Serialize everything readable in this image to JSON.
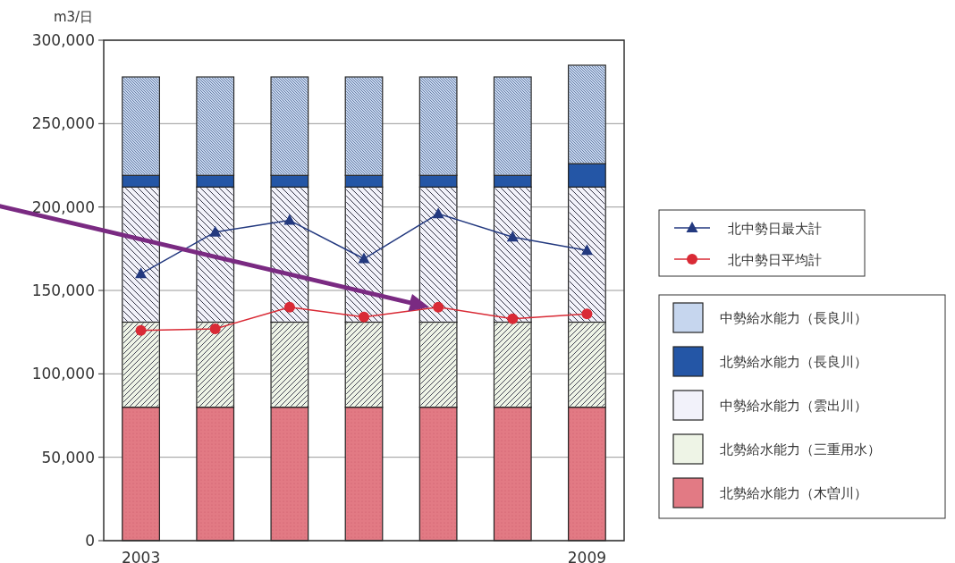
{
  "chart_data": {
    "type": "bar",
    "stacked": true,
    "ylabel": "m3/日",
    "categories": [
      "2003",
      null,
      null,
      null,
      null,
      null,
      "2009"
    ],
    "series": [
      {
        "name": "北勢給水能力（木曽川）",
        "color": "#e27a84",
        "values": [
          80000,
          80000,
          80000,
          80000,
          80000,
          80000,
          80000
        ]
      },
      {
        "name": "北勢給水能力（三重用水）",
        "color": "#eef4e6",
        "values": [
          51000,
          51000,
          51000,
          51000,
          51000,
          51000,
          51000
        ]
      },
      {
        "name": "中勢給水能力（雲出川）",
        "color": "#f2f2fa",
        "values": [
          81000,
          81000,
          81000,
          81000,
          81000,
          81000,
          81000
        ]
      },
      {
        "name": "北勢給水能力（長良川）",
        "color": "#2456a6",
        "values": [
          7000,
          7000,
          7000,
          7000,
          7000,
          7000,
          14000
        ]
      },
      {
        "name": "中勢給水能力（長良川）",
        "color": "#c6d6ee",
        "values": [
          59000,
          59000,
          59000,
          59000,
          59000,
          59000,
          59000
        ]
      },
      {
        "name": "北中勢日最大計",
        "type": "line",
        "marker": "triangle",
        "color": "#23397f",
        "values": [
          160000,
          185000,
          192000,
          169000,
          196000,
          182000,
          174000
        ]
      },
      {
        "name": "北中勢日平均計",
        "type": "line",
        "marker": "circle",
        "color": "#d92a35",
        "values": [
          126000,
          127000,
          140000,
          134000,
          140000,
          133000,
          136000
        ]
      }
    ],
    "ylim": [
      0,
      300000
    ],
    "yticks": [
      {
        "value": 0,
        "label": "0"
      },
      {
        "value": 50000,
        "label": "50,000"
      },
      {
        "value": 100000,
        "label": "100,000"
      },
      {
        "value": 150000,
        "label": "150,000"
      },
      {
        "value": 200000,
        "label": "200,000"
      },
      {
        "value": 250000,
        "label": "250,000"
      },
      {
        "value": 300000,
        "label": "300,000"
      }
    ],
    "grid": "y",
    "legend": "right"
  }
}
